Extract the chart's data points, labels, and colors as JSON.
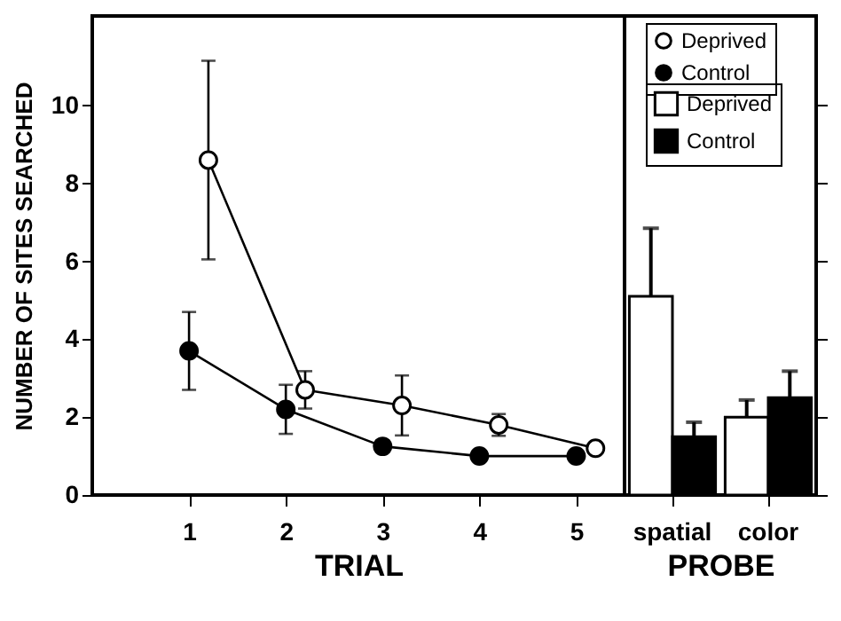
{
  "chart_data": [
    {
      "type": "line",
      "xlabel": "TRIAL",
      "ylabel": "NUMBER OF SITES SEARCHED",
      "xlim": [
        0,
        5.5
      ],
      "xticks": [
        1,
        2,
        3,
        4,
        5
      ],
      "ylim": [
        0,
        12.3
      ],
      "yticks": [
        0,
        2,
        4,
        6,
        8,
        10
      ],
      "grid": false,
      "legend": "top right",
      "marker": "circle",
      "line_style": "solid",
      "series": [
        {
          "name": "Deprived",
          "color": "#ffffff",
          "x": [
            1.2,
            2.2,
            3.2,
            4.2,
            5.2
          ],
          "values": [
            8.6,
            2.7,
            2.3,
            1.8,
            1.2
          ],
          "errors": [
            2.55,
            0.48,
            0.77,
            0.28,
            0.1
          ]
        },
        {
          "name": "Control",
          "color": "#000000",
          "x": [
            1,
            2,
            3,
            4,
            5
          ],
          "values": [
            3.7,
            2.2,
            1.25,
            1.0,
            1.0
          ],
          "errors": [
            1.0,
            0.63,
            0.15,
            null,
            null
          ]
        }
      ]
    },
    {
      "type": "bar",
      "xlabel": "PROBE",
      "categories": [
        "spatial",
        "color"
      ],
      "ylim": [
        0,
        12.3
      ],
      "yticks": [
        0,
        2,
        4,
        6,
        8,
        10
      ],
      "tick_labels": "x",
      "grid": false,
      "legend": "top right",
      "series": [
        {
          "name": "Deprived",
          "color": "#ffffff",
          "values": [
            5.1,
            2.0
          ],
          "errors": [
            [
              5.1,
              6.85
            ],
            [
              2.0,
              2.44
            ]
          ]
        },
        {
          "name": "Control",
          "color": "#000000",
          "values": [
            1.5,
            2.5
          ],
          "errors": [
            [
              1.5,
              1.87
            ],
            [
              2.5,
              3.18
            ]
          ]
        }
      ]
    }
  ]
}
